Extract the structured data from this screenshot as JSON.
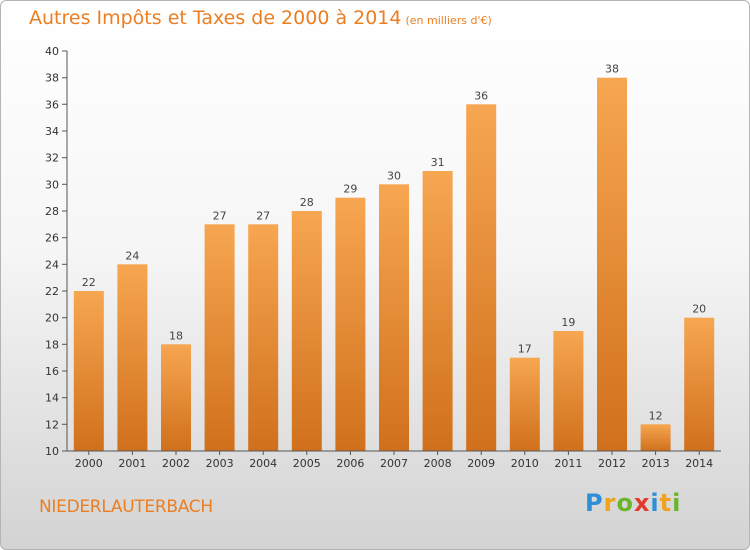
{
  "title": "Autres Impôts et Taxes de 2000 à 2014",
  "unit": "(en milliers d'€)",
  "city": "NIEDERLAUTERBACH",
  "logo": {
    "letters": [
      "P",
      "r",
      "o",
      "x",
      "i",
      "t",
      "i"
    ],
    "colors": [
      "#2f8fd6",
      "#f0a21a",
      "#6bb52a",
      "#e23b2a",
      "#2f8fd6",
      "#f0a21a",
      "#6bb52a"
    ]
  },
  "colors": {
    "bar_light": "#f7a651",
    "bar_dark": "#d0701c",
    "accent": "#ec7e22",
    "axis": "#555555"
  },
  "chart_data": {
    "type": "bar",
    "categories": [
      "2000",
      "2001",
      "2002",
      "2003",
      "2004",
      "2005",
      "2006",
      "2007",
      "2008",
      "2009",
      "2010",
      "2011",
      "2012",
      "2013",
      "2014"
    ],
    "values": [
      22,
      24,
      18,
      27,
      27,
      28,
      29,
      30,
      31,
      36,
      17,
      19,
      38,
      12,
      20
    ],
    "ylim": [
      10,
      40
    ],
    "yticks": [
      10,
      12,
      14,
      16,
      18,
      20,
      22,
      24,
      26,
      28,
      30,
      32,
      34,
      36,
      38,
      40
    ],
    "grid": false
  }
}
